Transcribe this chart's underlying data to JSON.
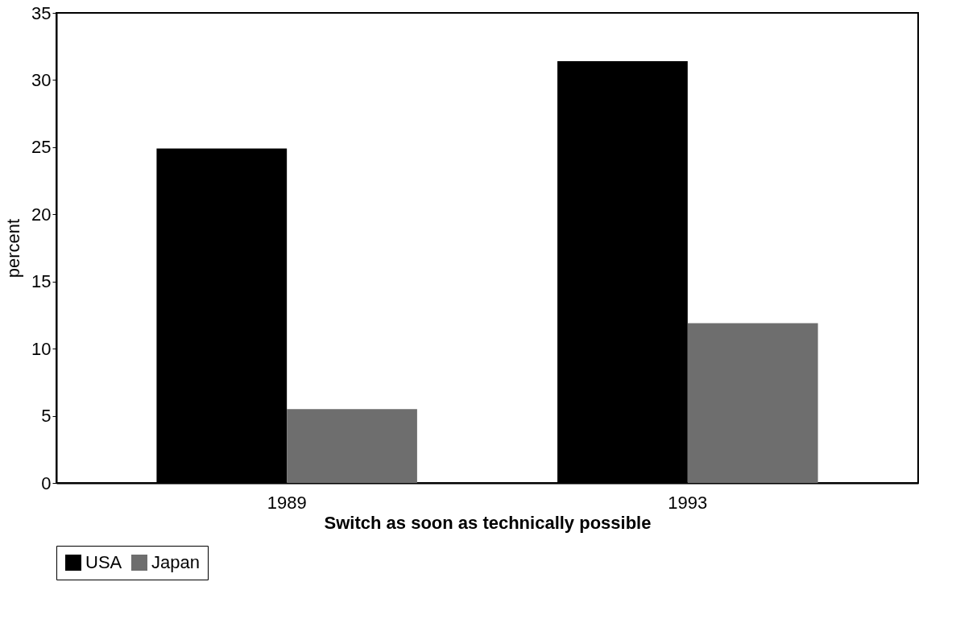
{
  "chart_data": {
    "type": "bar",
    "xlabel": "Switch as soon as technically possible",
    "ylabel": "percent",
    "categories": [
      "1989",
      "1993"
    ],
    "series": [
      {
        "name": "USA",
        "color": "#000000",
        "values": [
          24.9,
          31.4
        ]
      },
      {
        "name": "Japan",
        "color": "#6e6e6e",
        "values": [
          5.5,
          11.9
        ]
      }
    ],
    "ylim": [
      0,
      35
    ],
    "yticks": [
      0,
      5,
      10,
      15,
      20,
      25,
      30,
      35
    ],
    "grid": false,
    "legend": "bottom"
  }
}
